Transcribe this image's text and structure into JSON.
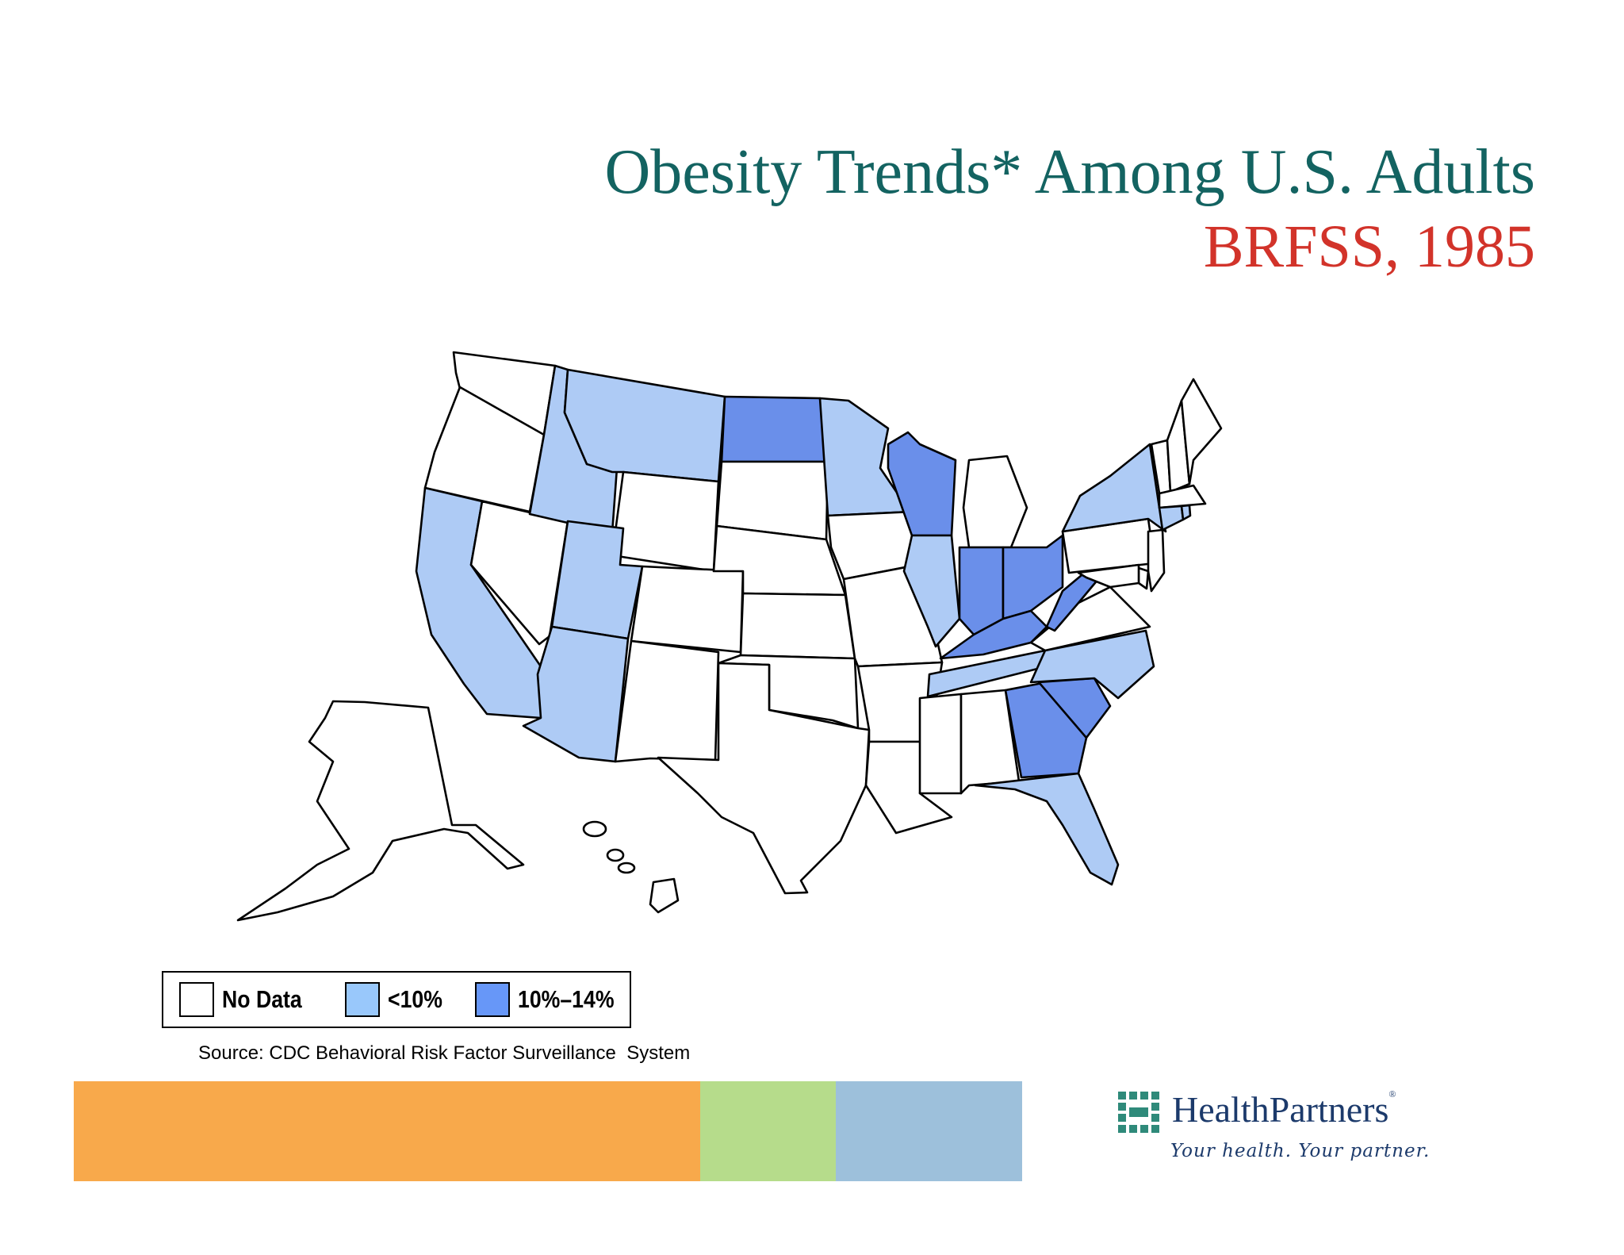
{
  "title": "Obesity Trends* Among U.S. Adults",
  "subtitle": "BRFSS, 1985",
  "colors": {
    "title": "#136361",
    "subtitle": "#d2332a",
    "no_data": "#ffffff",
    "lt10": "#aecbf5",
    "p10_14": "#6a8fea",
    "legend_lt10": "#99c8fb",
    "legend_p10_14": "#6797f8",
    "bar_orange": "#f8a94b",
    "bar_green": "#b6dc8b",
    "bar_blue": "#9dc0db"
  },
  "legend": {
    "items": [
      {
        "label": "No Data",
        "category": "no_data"
      },
      {
        "label": "<10%",
        "category": "lt10"
      },
      {
        "label": "10%–14%",
        "category": "p10_14"
      }
    ]
  },
  "source": "Source: CDC Behavioral Risk Factor Surveillance  System",
  "state_categories": {
    "WA": "no_data",
    "OR": "no_data",
    "CA": "lt10",
    "NV": "no_data",
    "ID": "lt10",
    "MT": "lt10",
    "WY": "no_data",
    "UT": "lt10",
    "AZ": "lt10",
    "CO": "no_data",
    "NM": "no_data",
    "ND": "p10_14",
    "SD": "no_data",
    "NE": "no_data",
    "KS": "no_data",
    "OK": "no_data",
    "TX": "no_data",
    "MN": "lt10",
    "IA": "no_data",
    "MO": "no_data",
    "AR": "no_data",
    "LA": "no_data",
    "WI": "p10_14",
    "IL": "lt10",
    "MI": "no_data",
    "IN": "p10_14",
    "OH": "p10_14",
    "KY": "p10_14",
    "TN": "lt10",
    "MS": "no_data",
    "AL": "no_data",
    "GA": "p10_14",
    "FL": "lt10",
    "SC": "p10_14",
    "NC": "lt10",
    "VA": "no_data",
    "WV": "p10_14",
    "PA": "no_data",
    "NY": "lt10",
    "ME": "no_data",
    "NH": "no_data",
    "VT": "no_data",
    "MA": "no_data",
    "CT": "lt10",
    "RI": "lt10",
    "NJ": "no_data",
    "DE": "no_data",
    "MD": "no_data",
    "AK": "no_data",
    "HI": "no_data"
  },
  "logo": {
    "name": "HealthPartners",
    "reg": "®",
    "tagline": "Your health. Your partner."
  }
}
